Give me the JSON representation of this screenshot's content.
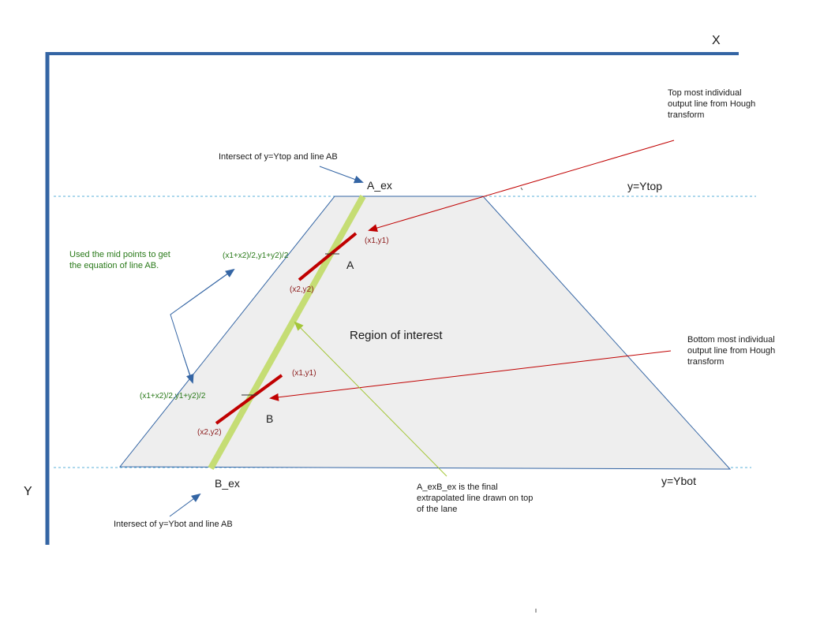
{
  "axes": {
    "x_label": "X",
    "y_label": "Y"
  },
  "guides": {
    "ytop_label": "y=Ytop",
    "ybot_label": "y=Ybot"
  },
  "region": {
    "label": "Region of interest"
  },
  "points": {
    "a_label": "A",
    "b_label": "B",
    "a_ex_label": "A_ex",
    "b_ex_label": "B_ex"
  },
  "segments": {
    "top_p1": "(x1,y1)",
    "top_p2": "(x2,y2)",
    "bottom_p1": "(x1,y1)",
    "bottom_p2": "(x2,y2)"
  },
  "midpoints": {
    "top_formula": "(x1+x2)/2,y1+y2)/2",
    "bottom_formula": "(x1+x2)/2,y1+y2)/2"
  },
  "annotations": {
    "intersect_top": "Intersect of y=Ytop and line AB",
    "intersect_bottom": "Intersect of y=Ybot and line AB",
    "midpoints_note": [
      "Used the mid points to get",
      "the equation of line AB."
    ],
    "top_hough": [
      "Top most individual",
      "output line from Hough",
      "transform"
    ],
    "bottom_hough": [
      "Bottom  most individual",
      "output line from Hough",
      "transform"
    ],
    "final_line": [
      "A_exB_ex is the final",
      "extrapolated line drawn on top",
      "of the lane"
    ]
  },
  "colors": {
    "axis": "#3465a4",
    "guide": "#5bb0d8",
    "region_fill": "#eeeeee",
    "region_stroke": "#3465a4",
    "extrapolated_line": "#c5dd74",
    "hough_segment": "#c00000",
    "pointer_blue": "#3465a4",
    "pointer_red": "#c00000",
    "pointer_green": "#a4c639"
  }
}
